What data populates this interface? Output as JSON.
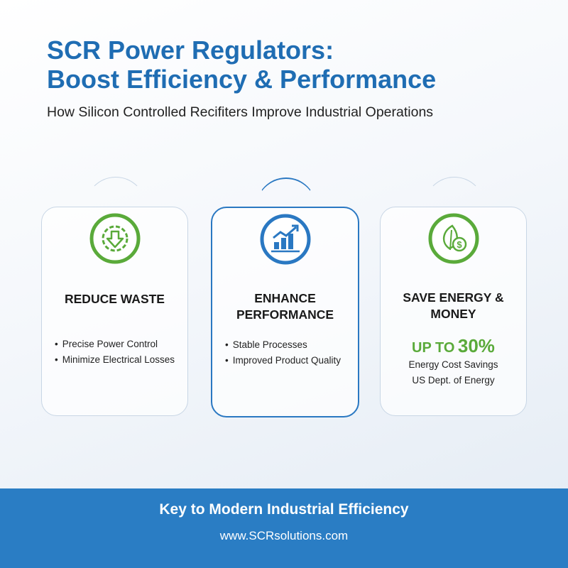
{
  "header": {
    "title_line1": "SCR Power Regulators:",
    "title_line2": "Boost Efficiency & Performance",
    "subtitle": "How Silicon Controlled Recifiters Improve Industrial Operations"
  },
  "cards": [
    {
      "title": "REDUCE WASTE",
      "bullets": [
        "Precise Power Control",
        "Minimize Electrical Losses"
      ]
    },
    {
      "title": "ENHANCE PERFORMANCE",
      "bullets": [
        "Stable Processes",
        "Improved Product Quality"
      ]
    },
    {
      "title": "SAVE ENERGY & MONEY",
      "stat_prefix": "UP TO",
      "stat_value": "30%",
      "notes": [
        "Energy Cost Savings",
        "US Dept. of Energy"
      ]
    }
  ],
  "footer": {
    "tagline": "Key to Modern Industrial Efficiency",
    "url": "www.SCRsolutions.com"
  }
}
